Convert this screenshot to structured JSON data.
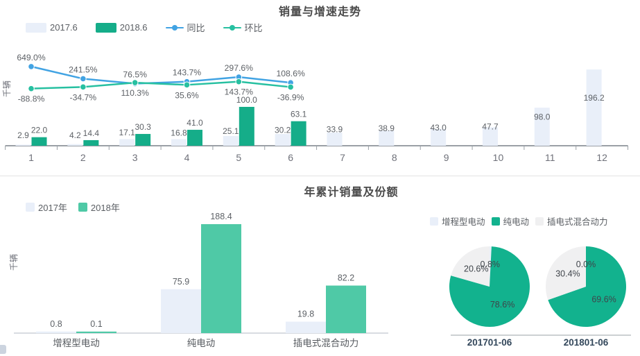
{
  "colors": {
    "bar_2017": "#e9eff9",
    "bar_2018": "#15ad89",
    "line_yoy": "#41a3e3",
    "line_mom": "#27c0a1",
    "bar_2018_light": "#4fc9a6",
    "pie_green": "#12b28e",
    "pie_gray": "#f0f0f1",
    "axis_dark": "#9aa0a6",
    "axis_light": "#ccd1d7",
    "value_label": "#5d6166",
    "tick_label": "#6e7079",
    "category_label": "#565a5f",
    "pie_label": "#3f444a",
    "title": "#4a4a4a",
    "pie_axis_label": "#33475b",
    "divider": "#e3e3e3"
  },
  "chart_data": [
    {
      "id": "sales-growth-trend",
      "type": "bar",
      "title": "销量与增速走势",
      "ylabel": "千辆",
      "xlabel": "",
      "categories": [
        "1",
        "2",
        "3",
        "4",
        "5",
        "6",
        "7",
        "8",
        "9",
        "10",
        "11",
        "12"
      ],
      "ylim": [
        0,
        250
      ],
      "ylim2": [
        -2000,
        1250
      ],
      "grid": false,
      "legend_position": "top-left",
      "series": [
        {
          "name": "2017.6",
          "kind": "bar",
          "color": "#e9eff9",
          "values": [
            2.9,
            4.2,
            17.1,
            16.8,
            25.1,
            30.2,
            33.9,
            38.9,
            43.0,
            47.7,
            98.0,
            196.2
          ]
        },
        {
          "name": "2018.6",
          "kind": "bar",
          "color": "#15ad89",
          "values": [
            22.0,
            14.4,
            30.3,
            41.0,
            100.0,
            63.1
          ]
        },
        {
          "name": "同比",
          "kind": "line",
          "unit": "%",
          "color": "#41a3e3",
          "label_side": "above",
          "values": [
            649.0,
            241.5,
            76.5,
            143.7,
            297.6,
            108.6
          ]
        },
        {
          "name": "环比",
          "kind": "line",
          "unit": "%",
          "color": "#27c0a1",
          "label_side": "below",
          "values": [
            -88.8,
            -34.7,
            110.3,
            35.6,
            143.7,
            -36.9
          ]
        }
      ]
    },
    {
      "id": "cumulative-sales-share",
      "type": "bar",
      "title": "年累计销量及份额",
      "ylabel": "千辆",
      "categories": [
        "增程型电动",
        "纯电动",
        "插电式混合动力"
      ],
      "ylim": [
        0,
        216
      ],
      "grid": false,
      "legend_position": "top-left",
      "series": [
        {
          "name": "2017年",
          "kind": "bar",
          "color": "#e9eff9",
          "values": [
            0.8,
            75.9,
            19.8
          ]
        },
        {
          "name": "2018年",
          "kind": "bar",
          "color": "#4fc9a6",
          "values": [
            0.1,
            188.4,
            82.2
          ]
        }
      ]
    },
    {
      "id": "share-pies",
      "type": "pie",
      "legend": [
        "增程型电动",
        "纯电动",
        "插电式混合动力"
      ],
      "colors": [
        "#e9eff9",
        "#12b28e",
        "#f0f0f1"
      ],
      "unit": "%",
      "pies": [
        {
          "label": "201701-06",
          "values": [
            0.8,
            78.6,
            20.6
          ]
        },
        {
          "label": "201801-06",
          "values": [
            0.0,
            69.6,
            30.4
          ]
        }
      ]
    }
  ]
}
